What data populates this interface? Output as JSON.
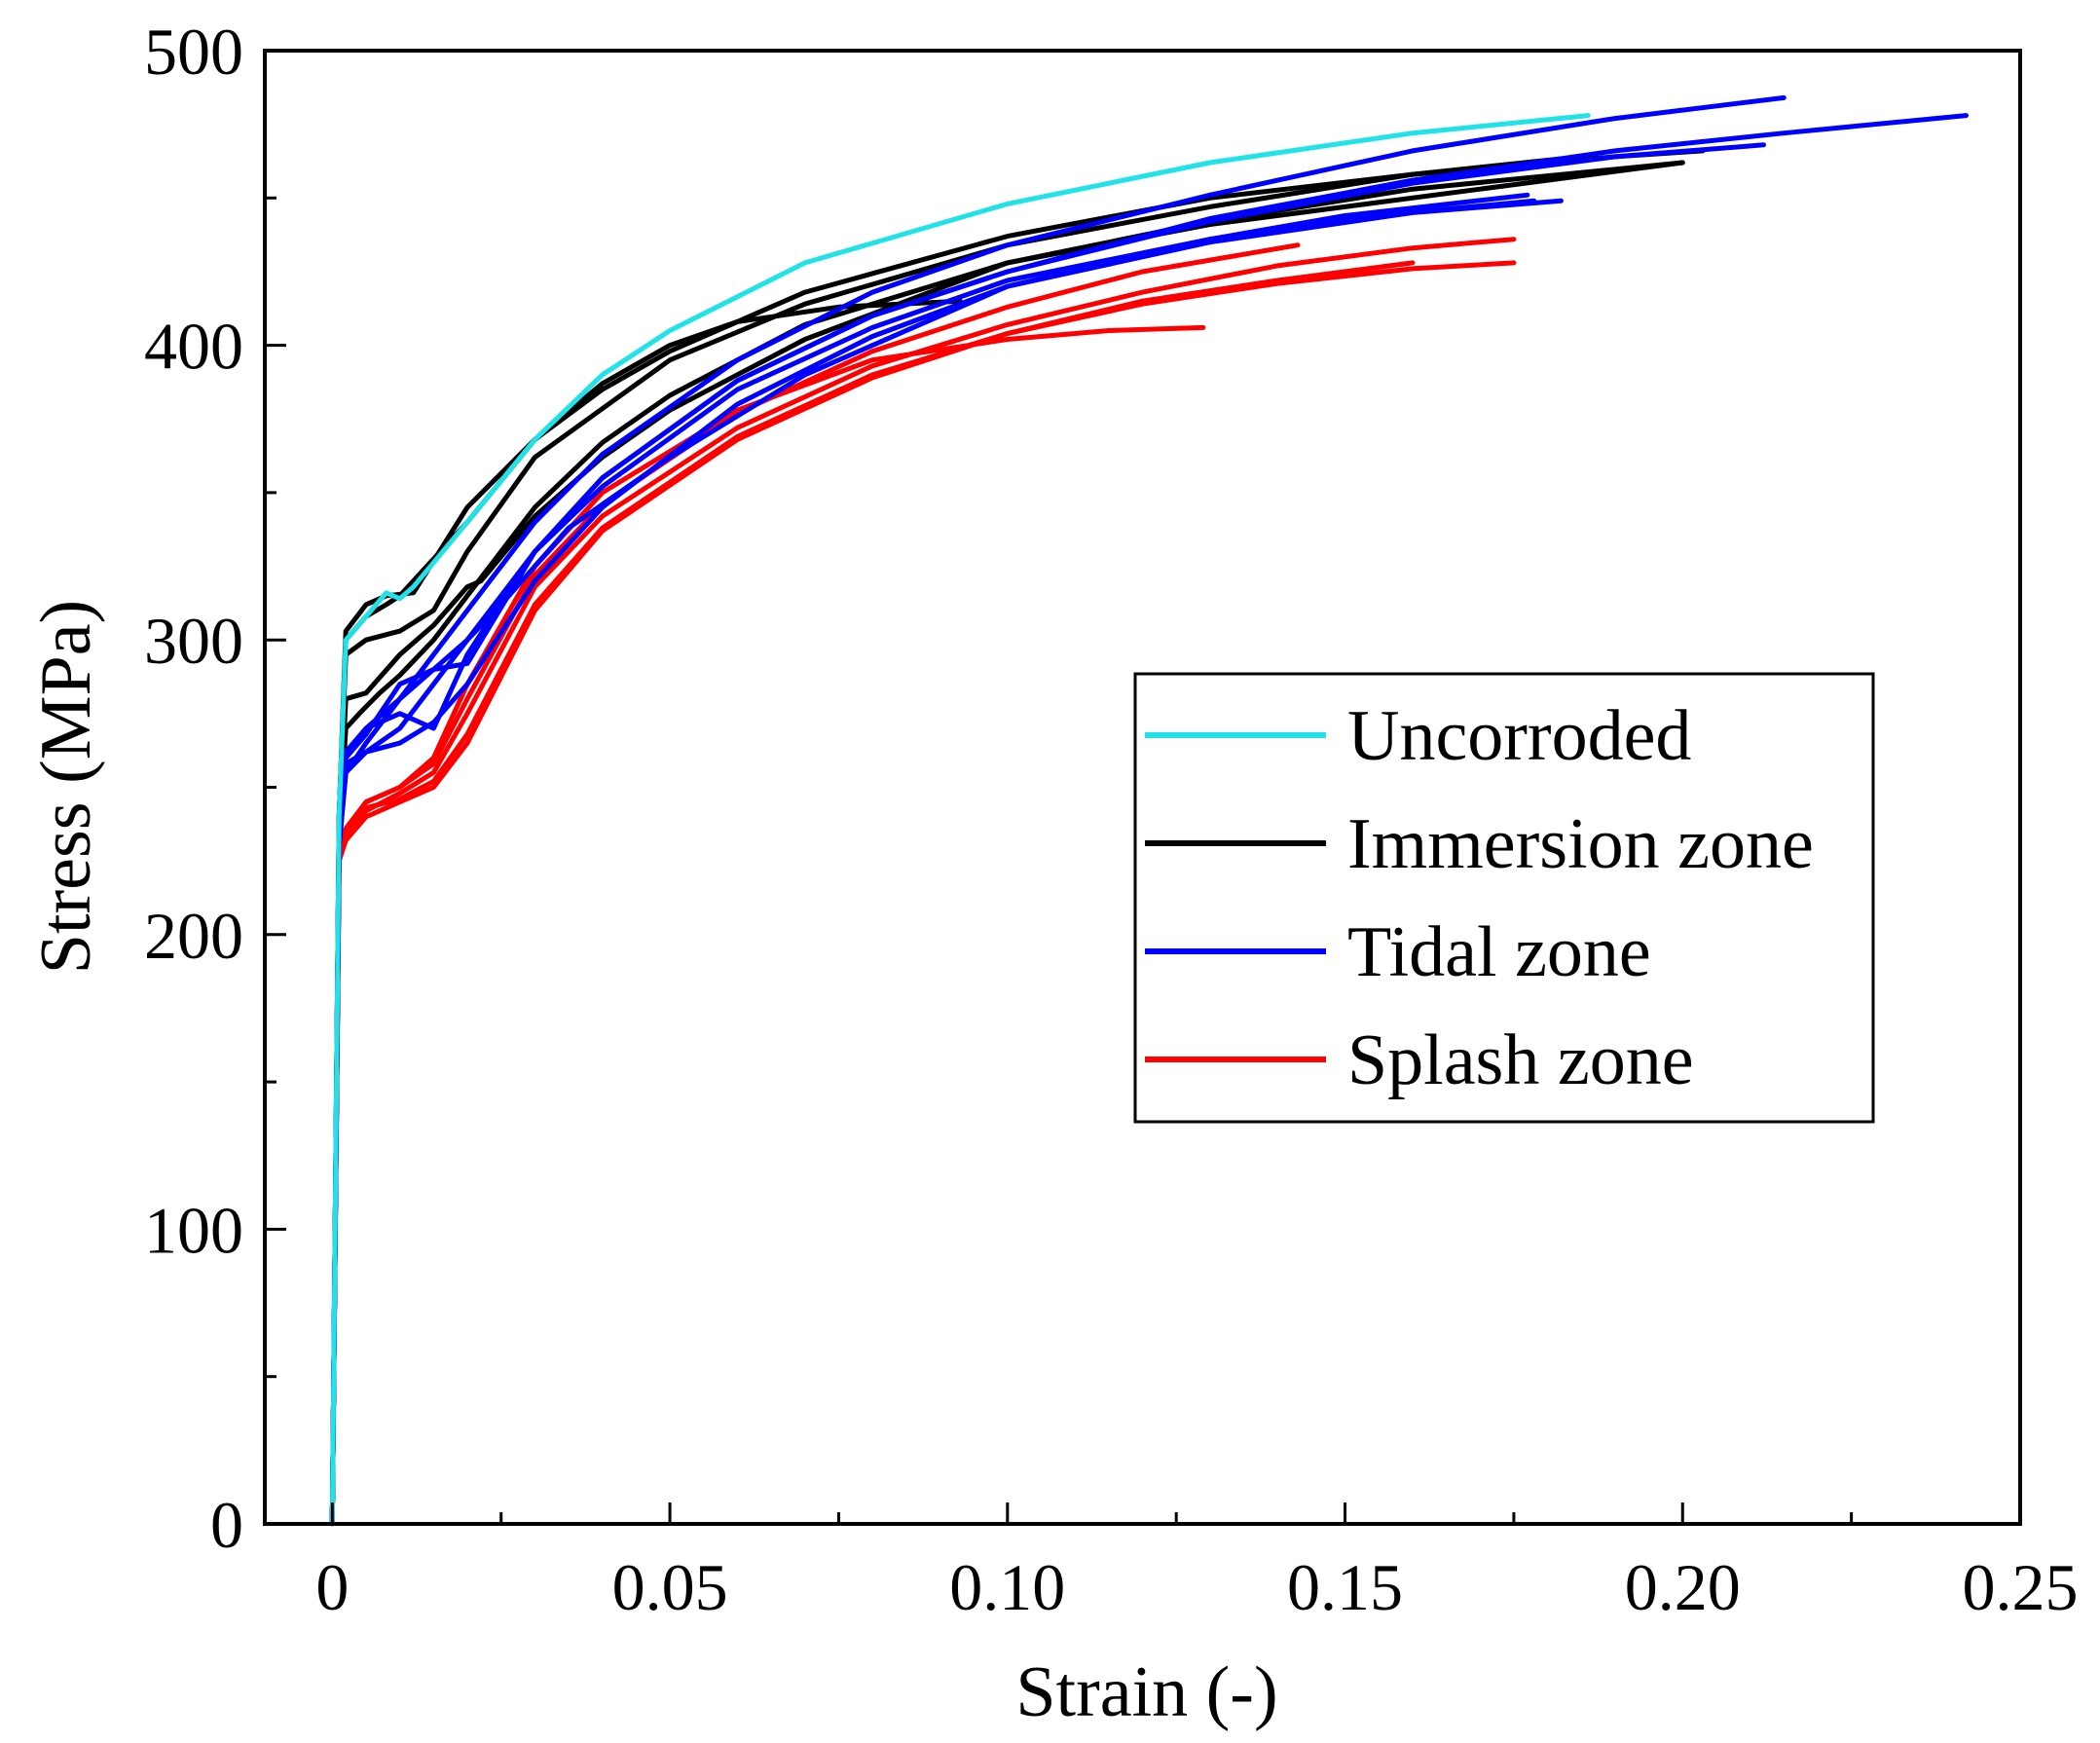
{
  "chart_data": {
    "type": "line",
    "title": "",
    "xlabel": "Strain (-)",
    "ylabel": "Stress (MPa)",
    "xlim": [
      -0.01,
      0.25
    ],
    "ylim": [
      0,
      500
    ],
    "x_ticks": [
      "0",
      "0.05",
      "0.10",
      "0.15",
      "0.20",
      "0.25"
    ],
    "x_tick_values": [
      0,
      0.05,
      0.1,
      0.15,
      0.2,
      0.25
    ],
    "y_ticks": [
      "0",
      "100",
      "200",
      "300",
      "400",
      "500"
    ],
    "y_tick_values": [
      0,
      100,
      200,
      300,
      400,
      500
    ],
    "grid": false,
    "legend_position": "center-right",
    "legend": [
      {
        "label": "Uncorroded",
        "color": "#1fe3e8"
      },
      {
        "label": "Immersion zone",
        "color": "#000000"
      },
      {
        "label": "Tidal zone",
        "color": "#0000ff"
      },
      {
        "label": "Splash zone",
        "color": "#ff0000"
      }
    ],
    "series": [
      {
        "group": "Uncorroded",
        "color": "#1fe3e8",
        "x": [
          0,
          0.001,
          0.002,
          0.005,
          0.008,
          0.01,
          0.012,
          0.02,
          0.03,
          0.04,
          0.05,
          0.07,
          0.1,
          0.13,
          0.16,
          0.186
        ],
        "y": [
          0,
          240,
          300,
          308,
          316,
          314,
          318,
          340,
          368,
          390,
          405,
          428,
          448,
          462,
          472,
          478
        ]
      },
      {
        "group": "Immersion zone",
        "color": "#000000",
        "x": [
          0,
          0.001,
          0.002,
          0.005,
          0.008,
          0.012,
          0.02,
          0.03,
          0.04,
          0.05,
          0.07,
          0.1,
          0.13,
          0.16,
          0.19,
          0.203
        ],
        "y": [
          0,
          240,
          303,
          312,
          315,
          316,
          345,
          368,
          385,
          398,
          418,
          437,
          450,
          458,
          464,
          466
        ]
      },
      {
        "group": "Immersion zone",
        "color": "#000000",
        "x": [
          0,
          0.001,
          0.002,
          0.005,
          0.01,
          0.015,
          0.02,
          0.03,
          0.05,
          0.07,
          0.1,
          0.13,
          0.16,
          0.185
        ],
        "y": [
          0,
          240,
          295,
          300,
          303,
          310,
          330,
          362,
          395,
          414,
          434,
          447,
          458,
          464
        ]
      },
      {
        "group": "Immersion zone",
        "color": "#000000",
        "x": [
          0,
          0.001,
          0.002,
          0.005,
          0.008,
          0.01,
          0.02,
          0.03,
          0.04,
          0.05,
          0.06,
          0.075,
          0.093
        ],
        "y": [
          0,
          240,
          300,
          308,
          312,
          315,
          340,
          368,
          387,
          400,
          408,
          413,
          415
        ]
      },
      {
        "group": "Immersion zone",
        "color": "#000000",
        "x": [
          0,
          0.001,
          0.002,
          0.005,
          0.01,
          0.015,
          0.02,
          0.022,
          0.03,
          0.04,
          0.05,
          0.07,
          0.1,
          0.13,
          0.16,
          0.2
        ],
        "y": [
          0,
          235,
          280,
          282,
          295,
          305,
          318,
          320,
          342,
          362,
          378,
          402,
          428,
          442,
          453,
          462
        ]
      },
      {
        "group": "Immersion zone",
        "color": "#000000",
        "x": [
          0,
          0.001,
          0.002,
          0.004,
          0.007,
          0.01,
          0.015,
          0.02,
          0.03,
          0.04,
          0.05,
          0.07,
          0.1,
          0.13,
          0.17,
          0.2
        ],
        "y": [
          0,
          235,
          270,
          275,
          282,
          288,
          300,
          315,
          345,
          367,
          383,
          407,
          428,
          441,
          453,
          462
        ]
      },
      {
        "group": "Tidal zone",
        "color": "#0000ff",
        "x": [
          0,
          0.001,
          0.002,
          0.005,
          0.01,
          0.02,
          0.03,
          0.04,
          0.06,
          0.08,
          0.1,
          0.13,
          0.16,
          0.19,
          0.215
        ],
        "y": [
          0,
          230,
          255,
          265,
          280,
          310,
          340,
          363,
          395,
          418,
          434,
          451,
          466,
          477,
          484
        ]
      },
      {
        "group": "Tidal zone",
        "color": "#0000ff",
        "x": [
          0,
          0.001,
          0.002,
          0.005,
          0.01,
          0.02,
          0.03,
          0.04,
          0.06,
          0.08,
          0.1,
          0.13,
          0.16,
          0.19,
          0.215,
          0.242
        ],
        "y": [
          0,
          230,
          255,
          262,
          270,
          300,
          330,
          355,
          388,
          410,
          425,
          443,
          456,
          466,
          472,
          478
        ]
      },
      {
        "group": "Tidal zone",
        "color": "#0000ff",
        "x": [
          0,
          0.001,
          0.002,
          0.005,
          0.01,
          0.015,
          0.02,
          0.03,
          0.04,
          0.06,
          0.08,
          0.1,
          0.13,
          0.16,
          0.19,
          0.212
        ],
        "y": [
          0,
          230,
          260,
          268,
          285,
          290,
          292,
          330,
          355,
          388,
          410,
          425,
          442,
          455,
          464,
          468
        ]
      },
      {
        "group": "Tidal zone",
        "color": "#0000ff",
        "x": [
          0,
          0.001,
          0.002,
          0.005,
          0.01,
          0.015,
          0.02,
          0.03,
          0.04,
          0.06,
          0.08,
          0.1,
          0.13,
          0.15,
          0.177
        ],
        "y": [
          0,
          230,
          258,
          262,
          265,
          272,
          285,
          320,
          345,
          380,
          403,
          420,
          436,
          444,
          451
        ]
      },
      {
        "group": "Tidal zone",
        "color": "#0000ff",
        "x": [
          0,
          0.001,
          0.002,
          0.005,
          0.01,
          0.015,
          0.02,
          0.03,
          0.04,
          0.06,
          0.08,
          0.1,
          0.13,
          0.15,
          0.178
        ],
        "y": [
          0,
          230,
          260,
          270,
          275,
          270,
          295,
          330,
          352,
          385,
          406,
          422,
          436,
          443,
          449
        ]
      },
      {
        "group": "Tidal zone",
        "color": "#0000ff",
        "x": [
          0,
          0.001,
          0.002,
          0.005,
          0.01,
          0.02,
          0.025,
          0.035,
          0.05,
          0.07,
          0.1,
          0.13,
          0.16,
          0.182
        ],
        "y": [
          0,
          230,
          262,
          270,
          280,
          300,
          312,
          338,
          362,
          390,
          420,
          435,
          445,
          449
        ]
      },
      {
        "group": "Splash zone",
        "color": "#ff0000",
        "x": [
          0,
          0.001,
          0.002,
          0.005,
          0.01,
          0.015,
          0.02,
          0.03,
          0.04,
          0.06,
          0.08,
          0.1,
          0.12,
          0.14,
          0.16,
          0.175
        ],
        "y": [
          0,
          225,
          233,
          242,
          248,
          255,
          275,
          318,
          342,
          372,
          393,
          407,
          418,
          427,
          433,
          436
        ]
      },
      {
        "group": "Splash zone",
        "color": "#ff0000",
        "x": [
          0,
          0.001,
          0.002,
          0.005,
          0.01,
          0.015,
          0.02,
          0.03,
          0.04,
          0.06,
          0.08,
          0.1,
          0.12,
          0.143
        ],
        "y": [
          0,
          225,
          235,
          245,
          250,
          258,
          280,
          322,
          346,
          377,
          398,
          413,
          425,
          434
        ]
      },
      {
        "group": "Splash zone",
        "color": "#ff0000",
        "x": [
          0,
          0.001,
          0.002,
          0.005,
          0.01,
          0.015,
          0.02,
          0.03,
          0.04,
          0.06,
          0.08,
          0.1,
          0.12,
          0.14,
          0.16
        ],
        "y": [
          0,
          225,
          232,
          240,
          245,
          250,
          265,
          310,
          337,
          368,
          389,
          404,
          415,
          422,
          428
        ]
      },
      {
        "group": "Splash zone",
        "color": "#ff0000",
        "x": [
          0,
          0.001,
          0.002,
          0.005,
          0.01,
          0.015,
          0.02,
          0.03,
          0.04,
          0.06,
          0.08,
          0.1,
          0.12,
          0.14,
          0.16,
          0.175
        ],
        "y": [
          0,
          225,
          234,
          243,
          246,
          252,
          268,
          312,
          338,
          369,
          390,
          404,
          414,
          421,
          426,
          428
        ]
      },
      {
        "group": "Splash zone",
        "color": "#ff0000",
        "x": [
          0,
          0.001,
          0.002,
          0.005,
          0.01,
          0.015,
          0.02,
          0.03,
          0.04,
          0.06,
          0.08,
          0.1,
          0.115,
          0.129
        ],
        "y": [
          0,
          225,
          236,
          245,
          250,
          260,
          285,
          325,
          350,
          378,
          395,
          402,
          405,
          406
        ]
      }
    ]
  }
}
